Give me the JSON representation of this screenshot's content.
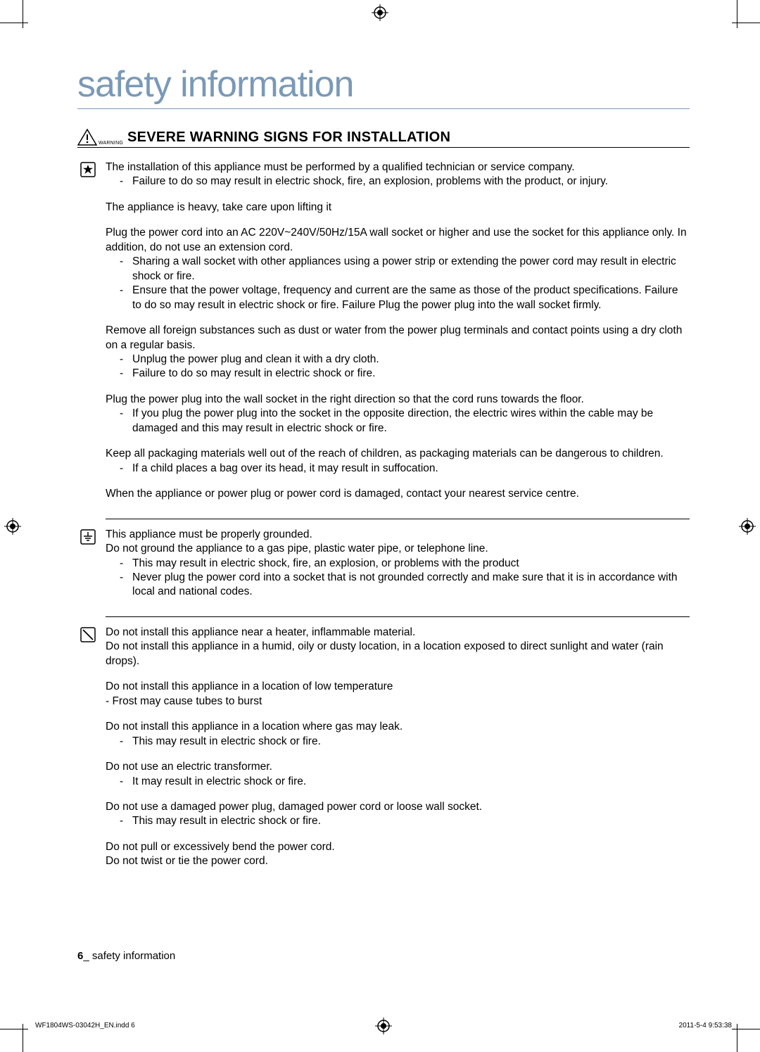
{
  "title": "safety information",
  "section": {
    "warning_label": "WARNING",
    "heading": "SEVERE WARNING SIGNS FOR INSTALLATION"
  },
  "blocks": [
    {
      "icon": "star-box",
      "paras": [
        {
          "text": "The installation of this appliance must be performed by a qualified technician or service company.",
          "subs": [
            "Failure to do so may result in electric shock, fire, an explosion, problems with the product, or injury."
          ]
        },
        {
          "text": "The appliance is heavy, take care upon lifting it",
          "subs": []
        },
        {
          "text": "Plug the power cord into an AC 220V~240V/50Hz/15A wall socket or higher and use the socket for this appliance only. In addition, do not use an extension cord.",
          "subs": [
            "Sharing a wall socket with other appliances using a power strip or extending the power cord may result in electric shock or fire.",
            "Ensure that the power voltage, frequency and current are the same as those of the product specifications. Failure to do so may result in electric shock or fire. Failure Plug the power plug into the wall socket firmly."
          ]
        },
        {
          "text": "Remove all foreign substances such as dust or water from the power plug terminals and contact points using a dry cloth on a regular basis.",
          "subs": [
            "Unplug the power plug and clean it with a dry cloth.",
            "Failure to do so may result in electric shock or fire."
          ]
        },
        {
          "text": "Plug the power plug into the wall socket in the right direction so that the cord runs towards the floor.",
          "subs": [
            "If you plug the power plug into the socket in the opposite direction, the electric wires within the cable may be damaged and this may result in electric shock or fire."
          ]
        },
        {
          "text": "Keep all packaging materials well out of the reach of children, as packaging materials can be dangerous to children.",
          "subs": [
            "If a child places a bag over its head, it may result in suffocation."
          ]
        },
        {
          "text": "When the appliance or power plug or power cord is damaged, contact your nearest service centre.",
          "subs": []
        }
      ],
      "divider_after": true
    },
    {
      "icon": "ground",
      "paras": [
        {
          "text": "This appliance must be properly grounded.",
          "text2": "Do not ground the appliance to a gas pipe, plastic water pipe, or telephone line.",
          "subs": [
            "This may result in electric shock, fire, an explosion, or problems with the product",
            "Never plug the power cord into a socket that is not grounded correctly and make sure that it is in accordance with local and national codes."
          ]
        }
      ],
      "divider_after": true
    },
    {
      "icon": "prohibit",
      "paras": [
        {
          "text": "Do not install this appliance near a heater, inflammable material.",
          "text2": "Do not install this appliance in a humid, oily or dusty location, in a location exposed to direct sunlight and water (rain drops).",
          "subs": []
        },
        {
          "text": "Do not install this appliance in a location of low temperature",
          "raw_subs": [
            "- Frost may cause tubes to burst"
          ]
        },
        {
          "text": "Do not install this appliance in a location where gas may leak.",
          "subs": [
            "This may result in electric shock or fire."
          ]
        },
        {
          "text": "Do not use an electric transformer.",
          "subs": [
            "It may result in electric shock or fire."
          ]
        },
        {
          "text": "Do not use a damaged power plug, damaged power cord or loose wall socket.",
          "subs": [
            "This may result in electric shock or fire."
          ]
        },
        {
          "text": "Do not pull or excessively bend the power cord.",
          "text2": "Do not twist or tie the power cord.",
          "subs": []
        }
      ],
      "divider_after": false
    }
  ],
  "footer": {
    "page_number": "6",
    "separator": "_",
    "label": " safety information"
  },
  "print": {
    "file": "WF1804WS-03042H_EN.indd   6",
    "timestamp": "2011-5-4   9:53:38"
  },
  "colors": {
    "title": "#7a99b8",
    "text": "#000000",
    "bg": "#ffffff"
  }
}
